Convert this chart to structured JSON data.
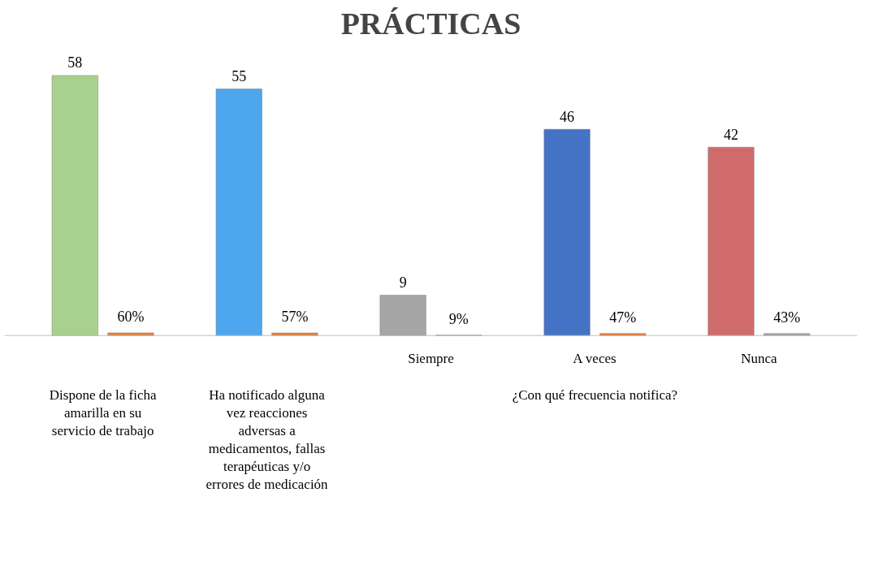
{
  "chart_data": {
    "type": "bar",
    "title": "PRÁCTICAS",
    "categories": [
      "Dispone de la ficha amarilla en su servicio de trabajo",
      "Ha notificado alguna vez reacciones adversas a medicamentos, fallas terapéuticas y/o errores de medicación",
      "Siempre",
      "A veces",
      "Nunca"
    ],
    "series": [
      {
        "colors": [
          "#a9d18e",
          "#4ea6ef",
          "#a6a6a6",
          "#4472c4",
          "#d06b6b"
        ],
        "values": [
          58,
          55,
          9,
          46,
          42
        ],
        "data_labels": true
      },
      {
        "colors": [
          "#ed7d31",
          "#ed7d31",
          "#ed7d31",
          "#ed7d31",
          "#a5a5a5"
        ],
        "values": [
          0.6,
          0.57,
          0.09,
          0.47,
          0.43
        ],
        "value_labels": [
          "60%",
          "57%",
          "9%",
          "47%",
          "43%"
        ]
      }
    ],
    "annotations": [
      "¿Con qué frecuencia notifica?"
    ],
    "grid": false
  }
}
